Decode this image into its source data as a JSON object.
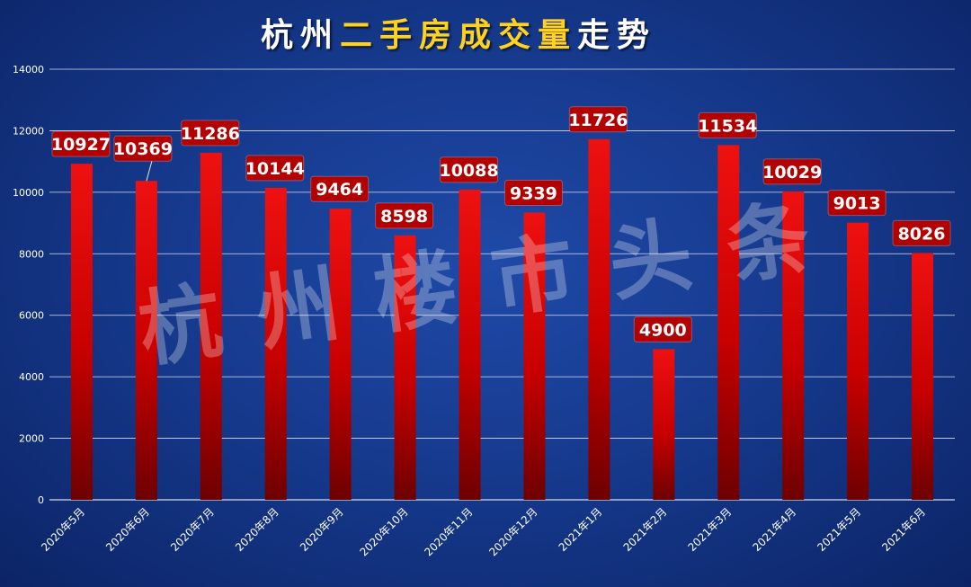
{
  "title": {
    "part1": "杭州",
    "part2": "二手房成交量",
    "part3": "走势"
  },
  "watermark": "杭州楼市头条",
  "colors": {
    "bar_top": "#ee1111",
    "bar_bottom": "#6e0000",
    "label_bg": "#b30000",
    "grid": "#d8dcea",
    "title_highlight": "#ffd21e"
  },
  "chart_data": {
    "type": "bar",
    "title": "杭州二手房成交量走势",
    "xlabel": "",
    "ylabel": "",
    "ylim": [
      0,
      14000
    ],
    "yticks": [
      0,
      2000,
      4000,
      6000,
      8000,
      10000,
      12000,
      14000
    ],
    "grid": true,
    "categories": [
      "2020年5月",
      "2020年6月",
      "2020年7月",
      "2020年8月",
      "2020年9月",
      "2020年10月",
      "2020年11月",
      "2020年12月",
      "2021年1月",
      "2021年2月",
      "2021年3月",
      "2021年4月",
      "2021年5月",
      "2021年6月"
    ],
    "values": [
      10927,
      10369,
      11286,
      10144,
      9464,
      8598,
      10088,
      9339,
      11726,
      4900,
      11534,
      10029,
      9013,
      8026
    ]
  }
}
